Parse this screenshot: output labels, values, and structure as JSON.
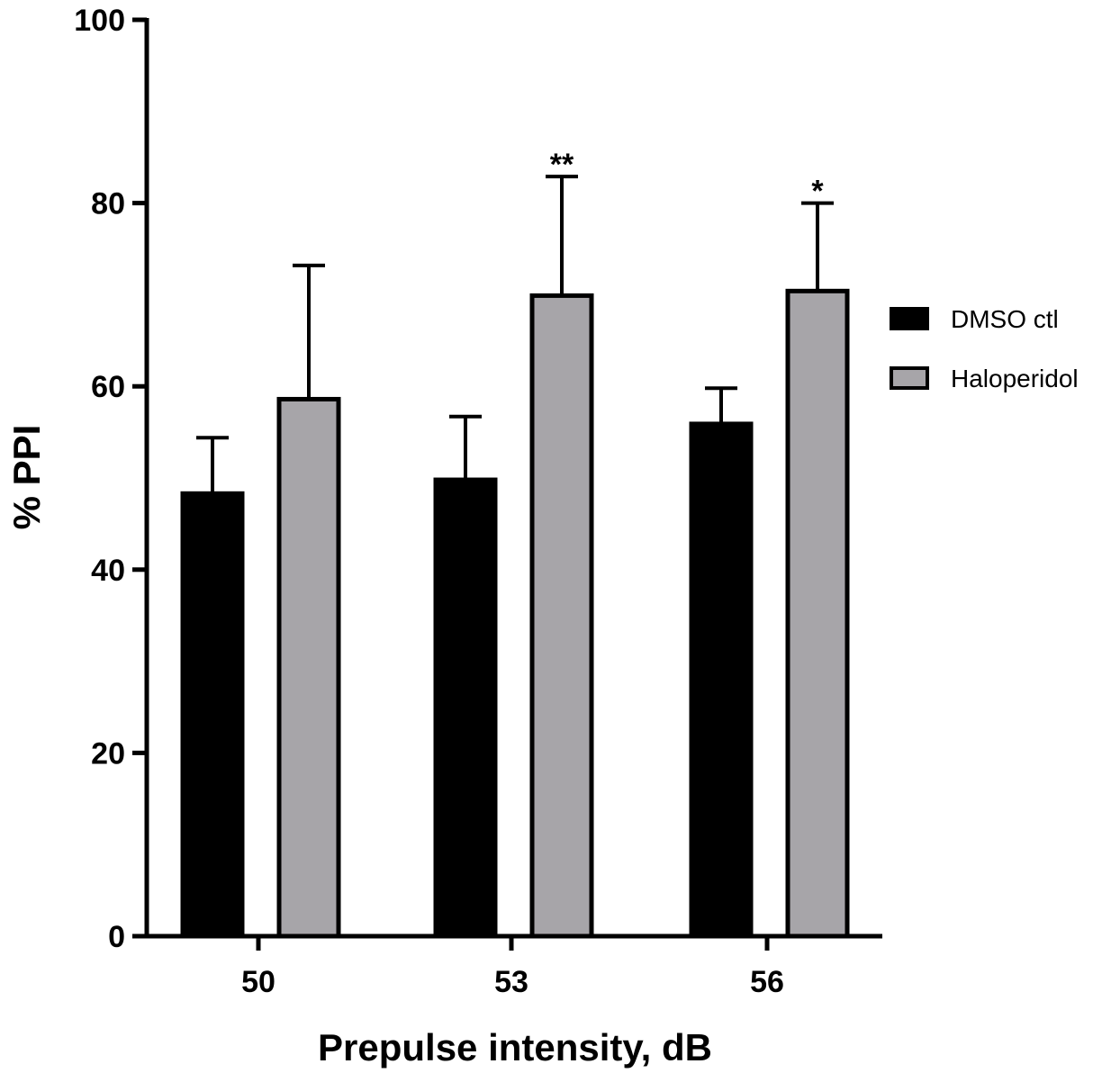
{
  "chart_data": {
    "type": "bar",
    "title": "",
    "xlabel": "Prepulse intensity, dB",
    "ylabel": "% PPI",
    "ylim": [
      0,
      100
    ],
    "yticks": [
      0,
      20,
      40,
      60,
      80,
      100
    ],
    "categories": [
      "50",
      "53",
      "56"
    ],
    "series": [
      {
        "name": "DMSO ctl",
        "color": "#000000",
        "values": [
          48.3,
          49.8,
          55.9
        ],
        "error_upper": [
          54.4,
          56.7,
          59.8
        ]
      },
      {
        "name": "Haloperidol",
        "color": "#a7a5a9",
        "values": [
          58.6,
          69.9,
          70.4
        ],
        "error_upper": [
          73.2,
          82.9,
          80.0
        ]
      }
    ],
    "annotations": [
      "",
      "**",
      "*"
    ],
    "legend_position": "right"
  }
}
